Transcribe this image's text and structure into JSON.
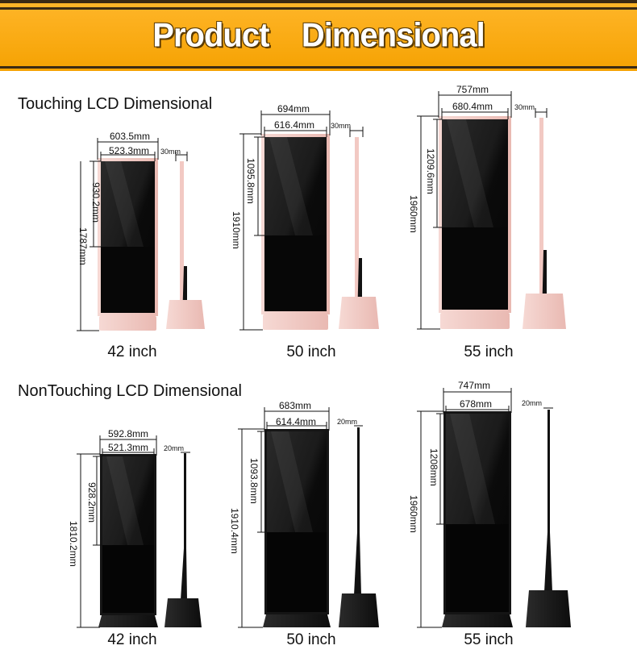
{
  "banner": {
    "title": "Product    Dimensional"
  },
  "sections": [
    {
      "title": "Touching LCD Dimensional",
      "models": [
        {
          "size": "42 inch",
          "outer_width": "603.5mm",
          "screen_width": "523.3mm",
          "depth": "30mm",
          "screen_height": "930.2mm",
          "total_height": "1787mm"
        },
        {
          "size": "50 inch",
          "outer_width": "694mm",
          "screen_width": "616.4mm",
          "depth": "30mm",
          "screen_height": "1095.8mm",
          "total_height": "1910mm"
        },
        {
          "size": "55 inch",
          "outer_width": "757mm",
          "screen_width": "680.4mm",
          "depth": "30mm",
          "screen_height": "1209.6mm",
          "total_height": "1960mm"
        }
      ]
    },
    {
      "title": "NonTouching LCD Dimensional",
      "models": [
        {
          "size": "42 inch",
          "outer_width": "592.8mm",
          "screen_width": "521.3mm",
          "depth": "20mm",
          "screen_height": "928.2mm",
          "total_height": "1810.2mm"
        },
        {
          "size": "50 inch",
          "outer_width": "683mm",
          "screen_width": "614.4mm",
          "depth": "20mm",
          "screen_height": "1093.8mm",
          "total_height": "1910.4mm"
        },
        {
          "size": "55 inch",
          "outer_width": "747mm",
          "screen_width": "678mm",
          "depth": "20mm",
          "screen_height": "1208mm",
          "total_height": "1960mm"
        }
      ]
    }
  ],
  "colors": {
    "banner": "#f5a100",
    "touch_frame": "#f3d0cc",
    "screen": "#0c0c0c",
    "stand_dark": "#1a1a1a"
  }
}
